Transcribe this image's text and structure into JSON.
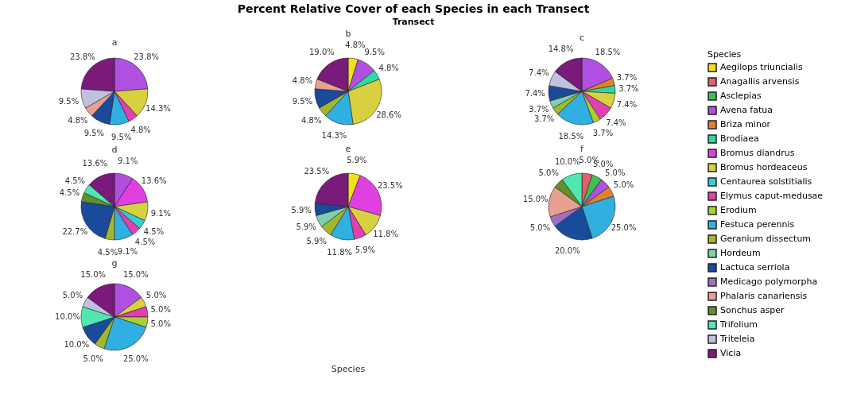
{
  "chart_data": {
    "type": "pie",
    "title": "Percent Relative Cover of each Species in each Transect",
    "subtitle": "Transect",
    "xlabel": "Species",
    "legend": "right",
    "legend_title": "Species",
    "categories": [
      "Aegilops triuncialis",
      "Anagallis arvensis",
      "Asclepias",
      "Avena fatua",
      "Briza minor",
      "Brodiaea",
      "Bromus diandrus",
      "Bromus hordeaceus",
      "Centaurea solstitialis",
      "Elymus caput-medusae",
      "Erodium",
      "Festuca perennis",
      "Geranium dissectum",
      "Hordeum",
      "Lactuca serriola",
      "Medicago polymorpha",
      "Phalaris canariensis",
      "Sonchus asper",
      "Trifolium",
      "Triteleia",
      "Vicia"
    ],
    "colors": [
      "#f0e020",
      "#e06070",
      "#40c050",
      "#b050e0",
      "#e08030",
      "#30d8a0",
      "#e040e0",
      "#d8d040",
      "#30d0d0",
      "#e040b0",
      "#a8d030",
      "#30b0e0",
      "#a0b830",
      "#80d0b0",
      "#1a4a9a",
      "#a070c0",
      "#e8a090",
      "#609030",
      "#50e8b0",
      "#c0c0e0",
      "#7a1a7a"
    ],
    "series": [
      {
        "name": "a",
        "values": [
          null,
          null,
          null,
          23.8,
          null,
          null,
          null,
          14.3,
          null,
          4.8,
          null,
          9.5,
          null,
          null,
          9.5,
          null,
          4.8,
          null,
          null,
          9.5,
          23.8
        ],
        "value_labels": [
          null,
          null,
          null,
          "23.8%",
          null,
          null,
          null,
          "14.3%",
          null,
          "4.8%",
          null,
          "9.5%",
          null,
          null,
          "9.5%",
          null,
          "4.8%",
          null,
          null,
          "9.5%",
          "23.8%"
        ]
      },
      {
        "name": "b",
        "values": [
          4.8,
          null,
          null,
          9.5,
          null,
          4.8,
          null,
          28.6,
          null,
          null,
          null,
          14.3,
          4.8,
          null,
          9.5,
          null,
          4.8,
          null,
          null,
          null,
          19.0
        ],
        "value_labels": [
          "4.8%",
          null,
          null,
          "9.5%",
          null,
          "4.8%",
          null,
          "28.6%",
          null,
          null,
          null,
          "14.3%",
          "4.8%",
          null,
          "9.5%",
          null,
          "4.8%",
          null,
          null,
          null,
          "19.0%"
        ]
      },
      {
        "name": "c",
        "values": [
          null,
          null,
          null,
          18.5,
          3.7,
          3.7,
          null,
          7.4,
          null,
          7.4,
          3.7,
          18.5,
          3.7,
          3.7,
          7.4,
          null,
          null,
          null,
          null,
          7.4,
          14.8
        ],
        "value_labels": [
          null,
          null,
          null,
          "18.5%",
          "3.7%",
          "3.7%",
          null,
          "7.4%",
          null,
          "7.4%",
          "3.7%",
          "18.5%",
          "3.7%",
          "3.7%",
          "7.4%",
          null,
          null,
          null,
          null,
          "7.4%",
          "14.8%"
        ]
      },
      {
        "name": "d",
        "values": [
          null,
          null,
          null,
          9.1,
          null,
          null,
          13.6,
          9.1,
          4.5,
          4.5,
          null,
          9.1,
          4.5,
          null,
          22.7,
          null,
          null,
          4.5,
          4.5,
          null,
          13.6
        ],
        "value_labels": [
          null,
          null,
          null,
          "9.1%",
          null,
          null,
          "13.6%",
          "9.1%",
          "4.5%",
          "4.5%",
          null,
          "9.1%",
          "4.5%",
          null,
          "22.7%",
          null,
          null,
          "4.5%",
          "4.5%",
          null,
          "13.6%"
        ]
      },
      {
        "name": "e",
        "values": [
          5.9,
          null,
          null,
          null,
          null,
          null,
          23.5,
          11.8,
          null,
          5.9,
          null,
          11.8,
          5.9,
          5.9,
          5.9,
          null,
          null,
          null,
          null,
          null,
          23.5
        ],
        "value_labels": [
          "5.9%",
          null,
          null,
          null,
          null,
          null,
          "23.5%",
          "11.8%",
          null,
          "5.9%",
          null,
          "11.8%",
          "5.9%",
          "5.9%",
          "5.9%",
          null,
          null,
          null,
          null,
          null,
          "23.5%"
        ]
      },
      {
        "name": "f",
        "values": [
          null,
          5.0,
          5.0,
          5.0,
          5.0,
          null,
          null,
          null,
          null,
          null,
          null,
          25.0,
          null,
          null,
          20.0,
          5.0,
          15.0,
          5.0,
          10.0,
          null,
          null
        ],
        "value_labels": [
          null,
          "5.0%",
          "5.0%",
          "5.0%",
          "5.0%",
          null,
          null,
          null,
          null,
          null,
          null,
          "25.0%",
          null,
          null,
          "20.0%",
          "5.0%",
          "15.0%",
          "5.0%",
          "10.0%",
          null,
          null
        ]
      },
      {
        "name": "g",
        "values": [
          null,
          null,
          null,
          15.0,
          null,
          null,
          null,
          5.0,
          null,
          5.0,
          5.0,
          25.0,
          5.0,
          null,
          10.0,
          null,
          null,
          null,
          10.0,
          5.0,
          15.0
        ],
        "value_labels": [
          null,
          null,
          null,
          "15.0%",
          null,
          null,
          null,
          "5.0%",
          null,
          "5.0%",
          "5.0%",
          "25.0%",
          "5.0%",
          null,
          "10.0%",
          null,
          null,
          null,
          "10.0%",
          "5.0%",
          "15.0%"
        ]
      }
    ]
  }
}
